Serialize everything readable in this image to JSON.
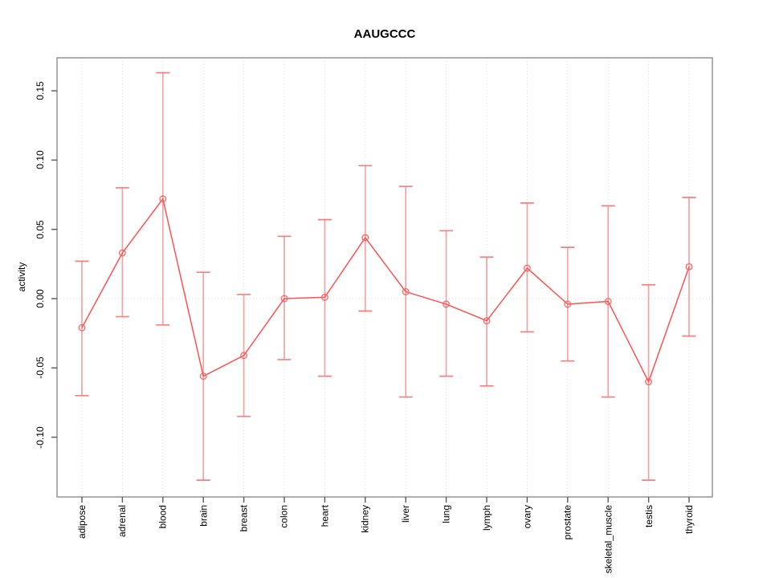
{
  "title": "AAUGCCC",
  "ylabel": "activity",
  "chart_data": {
    "type": "line",
    "title": "AAUGCCC",
    "xlabel": "",
    "ylabel": "activity",
    "categories": [
      "adipose",
      "adrenal",
      "blood",
      "brain",
      "breast",
      "colon",
      "heart",
      "kidney",
      "liver",
      "lung",
      "lymph",
      "ovary",
      "prostate",
      "skeletal_muscle",
      "testis",
      "thyroid"
    ],
    "series": [
      {
        "name": "activity",
        "values": [
          -0.021,
          0.033,
          0.072,
          -0.056,
          -0.041,
          0.0,
          0.001,
          0.044,
          0.005,
          -0.004,
          -0.016,
          0.022,
          -0.004,
          -0.002,
          -0.06,
          0.023
        ],
        "lower": [
          -0.07,
          -0.013,
          -0.019,
          -0.131,
          -0.085,
          -0.044,
          -0.056,
          -0.009,
          -0.071,
          -0.056,
          -0.063,
          -0.024,
          -0.045,
          -0.071,
          -0.131,
          -0.027
        ],
        "upper": [
          0.027,
          0.08,
          0.163,
          0.019,
          0.003,
          0.045,
          0.057,
          0.096,
          0.081,
          0.049,
          0.03,
          0.069,
          0.037,
          0.067,
          0.01,
          0.073
        ]
      }
    ],
    "y_tick_labels": [
      "0.15",
      "0.10",
      "0.05",
      "0.00",
      "-0.05",
      "-0.10"
    ],
    "y_tick_values": [
      0.15,
      0.1,
      0.05,
      0.0,
      -0.05,
      -0.1
    ],
    "ylim": [
      -0.143,
      0.175
    ],
    "grid": "dotted vertical line at each category and dotted horizontal line at y=0",
    "legend": "none",
    "point_style": "open circle with error bars and caps",
    "colors": {
      "line": "#ff5252",
      "errorbar": "#f5a3a3",
      "errorbar_cap": "#f77f7f",
      "point": "#fa6666",
      "grid": "#d9d9d9",
      "axis_box": "#8c8c8c",
      "tick": "#595959",
      "text": "#000000"
    }
  }
}
